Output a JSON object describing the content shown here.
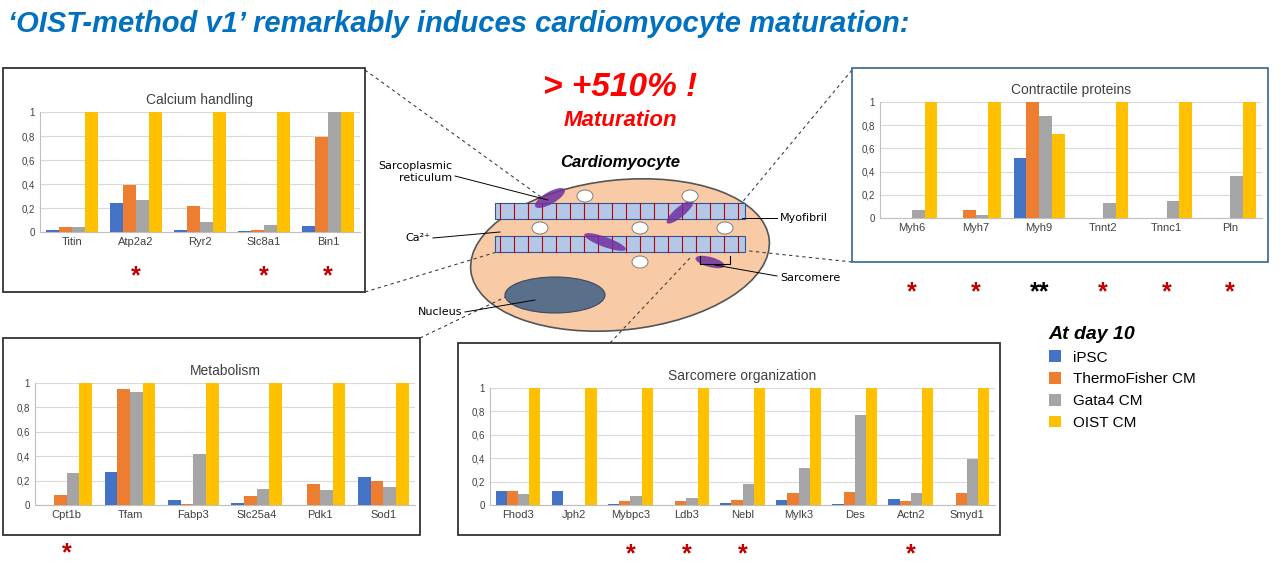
{
  "header": {
    "title": "‘OIST-method v1’ remarkably induces cardiomyocyte maturation:"
  },
  "highlight": {
    "value_text": "> +510% !",
    "caption": "Maturation"
  },
  "diagram": {
    "title": "Cardiomyocyte",
    "labels": [
      "Sarcoplasmic\nreticulum",
      "Ca²⁺",
      "Nucleus",
      "Myofibril",
      "Sarcomere"
    ]
  },
  "key": {
    "title": "At day 10"
  },
  "chart_data": [
    {
      "type": "bar",
      "title": "Calcium handling",
      "categories": [
        "Titin",
        "Atp2a2",
        "Ryr2",
        "Slc8a1",
        "Bin1"
      ],
      "series": [
        {
          "name": "iPSC",
          "color": "#4472c4",
          "values": [
            0.02,
            0.24,
            0.02,
            0.01,
            0.05
          ]
        },
        {
          "name": "ThermoFisher CM",
          "color": "#ed7d31",
          "values": [
            0.04,
            0.39,
            0.22,
            0.02,
            0.79
          ]
        },
        {
          "name": "Gata4 CM",
          "color": "#a5a5a5",
          "values": [
            0.04,
            0.27,
            0.08,
            0.06,
            1.0
          ]
        },
        {
          "name": "OIST CM",
          "color": "#ffc000",
          "values": [
            1.0,
            1.0,
            1.0,
            1.0,
            1.0
          ]
        }
      ],
      "ylim": [
        0,
        1
      ],
      "yticks": [
        0,
        {
          "value": 0.2,
          "label": "0,2"
        },
        {
          "value": 0.4,
          "label": "0,4"
        },
        {
          "value": 0.6,
          "label": "0,6"
        },
        {
          "value": 0.8,
          "label": "0,8"
        },
        1
      ],
      "grid": true,
      "annotations": [
        {
          "category": "Atp2a2",
          "text": "*",
          "color": "#c00000"
        },
        {
          "category": "Slc8a1",
          "text": "*",
          "color": "#c00000"
        },
        {
          "category": "Bin1",
          "text": "*",
          "color": "#c00000"
        }
      ]
    },
    {
      "type": "bar",
      "title": "Contractile proteins",
      "categories": [
        "Myh6",
        "Myh7",
        "Myh9",
        "Tnnt2",
        "Tnnc1",
        "Pln"
      ],
      "series": [
        {
          "name": "iPSC",
          "color": "#4472c4",
          "values": [
            0.0,
            0.0,
            0.52,
            0.0,
            0.0,
            0.0
          ]
        },
        {
          "name": "ThermoFisher CM",
          "color": "#ed7d31",
          "values": [
            0.0,
            0.07,
            1.0,
            0.0,
            0.0,
            0.0
          ]
        },
        {
          "name": "Gata4 CM",
          "color": "#a5a5a5",
          "values": [
            0.07,
            0.03,
            0.88,
            0.13,
            0.15,
            0.36
          ]
        },
        {
          "name": "OIST CM",
          "color": "#ffc000",
          "values": [
            1.0,
            1.0,
            0.72,
            1.0,
            1.0,
            1.0
          ]
        }
      ],
      "ylim": [
        0,
        1
      ],
      "yticks": [
        0,
        {
          "value": 0.2,
          "label": "0,2"
        },
        {
          "value": 0.4,
          "label": "0,4"
        },
        {
          "value": 0.6,
          "label": "0,6"
        },
        {
          "value": 0.8,
          "label": "0,8"
        },
        1
      ],
      "grid": true,
      "annotations": [
        {
          "category": "Myh6",
          "text": "*",
          "color": "#c00000"
        },
        {
          "category": "Myh7",
          "text": "*",
          "color": "#c00000"
        },
        {
          "category": "Myh9",
          "text": "**",
          "color": "#000000"
        },
        {
          "category": "Tnnt2",
          "text": "*",
          "color": "#c00000"
        },
        {
          "category": "Tnnc1",
          "text": "*",
          "color": "#c00000"
        },
        {
          "category": "Pln",
          "text": "*",
          "color": "#c00000"
        }
      ]
    },
    {
      "type": "bar",
      "title": "Metabolism",
      "categories": [
        "Cpt1b",
        "Tfam",
        "Fabp3",
        "Slc25a4",
        "Pdk1",
        "Sod1"
      ],
      "series": [
        {
          "name": "iPSC",
          "color": "#4472c4",
          "values": [
            0.0,
            0.27,
            0.04,
            0.02,
            0.0,
            0.23
          ]
        },
        {
          "name": "ThermoFisher CM",
          "color": "#ed7d31",
          "values": [
            0.08,
            0.95,
            0.01,
            0.07,
            0.17,
            0.2
          ]
        },
        {
          "name": "Gata4 CM",
          "color": "#a5a5a5",
          "values": [
            0.26,
            0.93,
            0.42,
            0.13,
            0.12,
            0.15
          ]
        },
        {
          "name": "OIST CM",
          "color": "#ffc000",
          "values": [
            1.0,
            1.0,
            1.0,
            1.0,
            1.0,
            1.0
          ]
        }
      ],
      "ylim": [
        0,
        1
      ],
      "yticks": [
        0,
        {
          "value": 0.2,
          "label": "0,2"
        },
        {
          "value": 0.4,
          "label": "0,4"
        },
        {
          "value": 0.6,
          "label": "0,6"
        },
        {
          "value": 0.8,
          "label": "0,8"
        },
        1
      ],
      "grid": true,
      "annotations": [
        {
          "category": "Cpt1b",
          "text": "*",
          "color": "#c00000"
        }
      ]
    },
    {
      "type": "bar",
      "title": "Sarcomere organization",
      "categories": [
        "Fhod3",
        "Jph2",
        "Mybpc3",
        "Ldb3",
        "Nebl",
        "Mylk3",
        "Des",
        "Actn2",
        "Smyd1"
      ],
      "series": [
        {
          "name": "iPSC",
          "color": "#4472c4",
          "values": [
            0.12,
            0.12,
            0.01,
            0.0,
            0.02,
            0.04,
            0.01,
            0.05,
            0.0
          ]
        },
        {
          "name": "ThermoFisher CM",
          "color": "#ed7d31",
          "values": [
            0.12,
            0.0,
            0.03,
            0.03,
            0.04,
            0.1,
            0.11,
            0.03,
            0.1
          ]
        },
        {
          "name": "Gata4 CM",
          "color": "#a5a5a5",
          "values": [
            0.09,
            0.0,
            0.08,
            0.06,
            0.18,
            0.32,
            0.77,
            0.1,
            0.39
          ]
        },
        {
          "name": "OIST CM",
          "color": "#ffc000",
          "values": [
            1.0,
            1.0,
            1.0,
            1.0,
            1.0,
            1.0,
            1.0,
            1.0,
            1.0
          ]
        }
      ],
      "ylim": [
        0,
        1
      ],
      "yticks": [
        0,
        {
          "value": 0.2,
          "label": "0,2"
        },
        {
          "value": 0.4,
          "label": "0,4"
        },
        {
          "value": 0.6,
          "label": "0,6"
        },
        {
          "value": 0.8,
          "label": "0,8"
        },
        1
      ],
      "grid": true,
      "annotations": [
        {
          "category": "Mybpc3",
          "text": "*",
          "color": "#c00000"
        },
        {
          "category": "Ldb3",
          "text": "*",
          "color": "#c00000"
        },
        {
          "category": "Nebl",
          "text": "*",
          "color": "#c00000"
        },
        {
          "category": "Actn2",
          "text": "*",
          "color": "#c00000"
        }
      ]
    }
  ]
}
